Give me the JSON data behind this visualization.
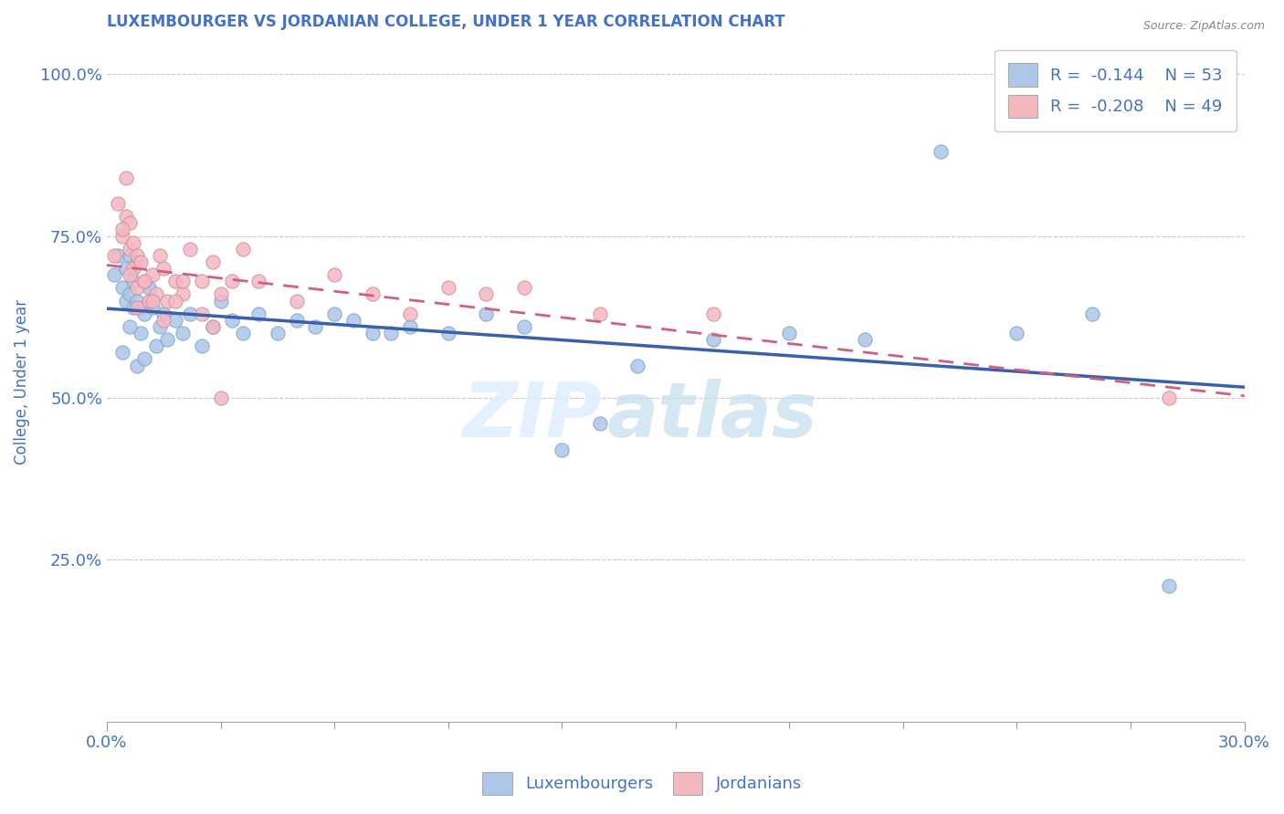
{
  "title": "LUXEMBOURGER VS JORDANIAN COLLEGE, UNDER 1 YEAR CORRELATION CHART",
  "source_text": "Source: ZipAtlas.com",
  "ylabel": "College, Under 1 year",
  "xlim": [
    0.0,
    0.3
  ],
  "ylim": [
    0.0,
    1.05
  ],
  "ytick_labels": [
    "25.0%",
    "50.0%",
    "75.0%",
    "100.0%"
  ],
  "ytick_values": [
    0.25,
    0.5,
    0.75,
    1.0
  ],
  "legend_r1": "R =  -0.144",
  "legend_n1": "N = 53",
  "legend_r2": "R =  -0.208",
  "legend_n2": "N = 49",
  "color_blue": "#AEC6E8",
  "color_pink": "#F4B8C1",
  "line_blue": "#3A5FAD",
  "line_pink": "#D06080",
  "title_color": "#4472C4",
  "axis_color": "#4472C4",
  "lux_x": [
    0.002,
    0.003,
    0.004,
    0.005,
    0.005,
    0.006,
    0.006,
    0.007,
    0.007,
    0.008,
    0.008,
    0.009,
    0.01,
    0.011,
    0.012,
    0.013,
    0.014,
    0.015,
    0.016,
    0.018,
    0.02,
    0.022,
    0.025,
    0.028,
    0.03,
    0.033,
    0.036,
    0.04,
    0.045,
    0.05,
    0.055,
    0.06,
    0.065,
    0.07,
    0.075,
    0.08,
    0.09,
    0.1,
    0.11,
    0.12,
    0.13,
    0.14,
    0.16,
    0.18,
    0.2,
    0.22,
    0.24,
    0.26,
    0.28,
    0.004,
    0.006,
    0.008,
    0.01
  ],
  "lux_y": [
    0.69,
    0.72,
    0.67,
    0.7,
    0.65,
    0.66,
    0.72,
    0.68,
    0.64,
    0.71,
    0.65,
    0.6,
    0.63,
    0.67,
    0.64,
    0.58,
    0.61,
    0.63,
    0.59,
    0.62,
    0.6,
    0.63,
    0.58,
    0.61,
    0.65,
    0.62,
    0.6,
    0.63,
    0.6,
    0.62,
    0.61,
    0.63,
    0.62,
    0.6,
    0.6,
    0.61,
    0.6,
    0.63,
    0.61,
    0.42,
    0.46,
    0.55,
    0.59,
    0.6,
    0.59,
    0.88,
    0.6,
    0.63,
    0.21,
    0.57,
    0.61,
    0.55,
    0.56
  ],
  "jor_x": [
    0.002,
    0.003,
    0.004,
    0.005,
    0.005,
    0.006,
    0.006,
    0.007,
    0.007,
    0.008,
    0.008,
    0.009,
    0.01,
    0.011,
    0.012,
    0.013,
    0.014,
    0.015,
    0.016,
    0.018,
    0.02,
    0.022,
    0.025,
    0.028,
    0.03,
    0.033,
    0.036,
    0.04,
    0.05,
    0.06,
    0.07,
    0.08,
    0.09,
    0.1,
    0.11,
    0.13,
    0.16,
    0.004,
    0.006,
    0.008,
    0.01,
    0.012,
    0.015,
    0.018,
    0.02,
    0.025,
    0.028,
    0.03,
    0.28
  ],
  "jor_y": [
    0.72,
    0.8,
    0.75,
    0.78,
    0.84,
    0.73,
    0.77,
    0.7,
    0.74,
    0.72,
    0.67,
    0.71,
    0.68,
    0.65,
    0.69,
    0.66,
    0.72,
    0.7,
    0.65,
    0.68,
    0.66,
    0.73,
    0.68,
    0.71,
    0.66,
    0.68,
    0.73,
    0.68,
    0.65,
    0.69,
    0.66,
    0.63,
    0.67,
    0.66,
    0.67,
    0.63,
    0.63,
    0.76,
    0.69,
    0.64,
    0.68,
    0.65,
    0.62,
    0.65,
    0.68,
    0.63,
    0.61,
    0.5,
    0.5
  ]
}
